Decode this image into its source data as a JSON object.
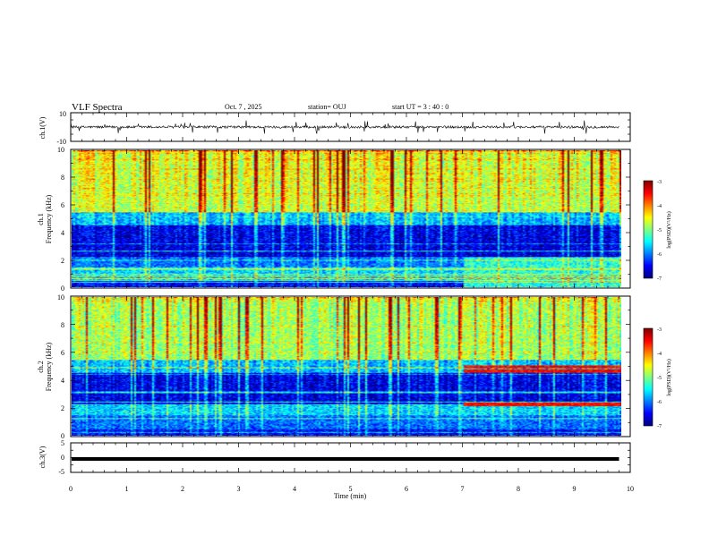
{
  "header": {
    "title": "VLF Spectra",
    "date": "Oct. 7 , 2025",
    "station": "station= OUJ",
    "start": "start UT = 3 : 40 : 0"
  },
  "chart_data": [
    {
      "type": "line",
      "name": "ch1-waveform",
      "ylabel": "ch.1(V)",
      "ylim": [
        -10,
        10
      ],
      "yticks": [
        "10",
        "-10"
      ],
      "xlim": [
        0,
        10
      ],
      "data_extent_min": 9.8,
      "baseline_v": 0,
      "noise_amplitude_v": 1.5,
      "spike_amplitude_v": 5
    },
    {
      "type": "heatmap",
      "name": "ch1-spectrogram",
      "ylabel_channel": "ch.1",
      "ylabel": "Frequency (kHz)",
      "ylim": [
        0,
        10
      ],
      "yticks": [
        "0",
        "2",
        "4",
        "6",
        "8",
        "10"
      ],
      "xlim": [
        0,
        10
      ],
      "colorbar": {
        "label": "log(PSD)(V²/Hz)",
        "range": [
          -7,
          -3
        ],
        "ticks": [
          "-3",
          "-4",
          "-5",
          "-6",
          "-7"
        ]
      },
      "band_edges_khz": [
        0,
        0.5,
        1.5,
        2.2,
        3.2,
        4.6,
        5.5,
        10
      ],
      "band_levels": [
        -6.6,
        -5.8,
        -6.2,
        -6.8,
        -6.8,
        -6.0,
        -5.0,
        -4.2
      ],
      "after_7min_low_band_level": -5.5
    },
    {
      "type": "heatmap",
      "name": "ch2-spectrogram",
      "ylabel_channel": "ch.2",
      "ylabel": "Frequency (kHz)",
      "ylim": [
        0,
        10
      ],
      "yticks": [
        "0",
        "2",
        "4",
        "6",
        "8",
        "10"
      ],
      "xlim": [
        0,
        10
      ],
      "colorbar": {
        "label": "log(PSD)(V²/Hz)",
        "range": [
          -7,
          -3
        ],
        "ticks": [
          "-3",
          "-4",
          "-5",
          "-6",
          "-7"
        ]
      },
      "band_edges_khz": [
        0,
        0.5,
        1.5,
        2.2,
        3.2,
        4.6,
        5.5,
        10
      ],
      "band_levels": [
        -6.6,
        -6.2,
        -5.8,
        -6.8,
        -6.8,
        -6.0,
        -5.2,
        -4.6
      ],
      "emission_lines_after_7min_khz": [
        2.3,
        4.7,
        5.0
      ],
      "emission_line_level": -3.5
    },
    {
      "type": "line",
      "name": "ch3-waveform",
      "ylabel": "ch.3(V)",
      "ylim": [
        -5,
        5
      ],
      "yticks": [
        "5",
        "0",
        "-5"
      ],
      "xlim": [
        0,
        10
      ],
      "data_extent_min": 9.8,
      "value_v": -0.5
    }
  ],
  "xaxis": {
    "label": "Time (min)",
    "ticks": [
      "0",
      "1",
      "2",
      "3",
      "4",
      "5",
      "6",
      "7",
      "8",
      "9",
      "10"
    ]
  }
}
